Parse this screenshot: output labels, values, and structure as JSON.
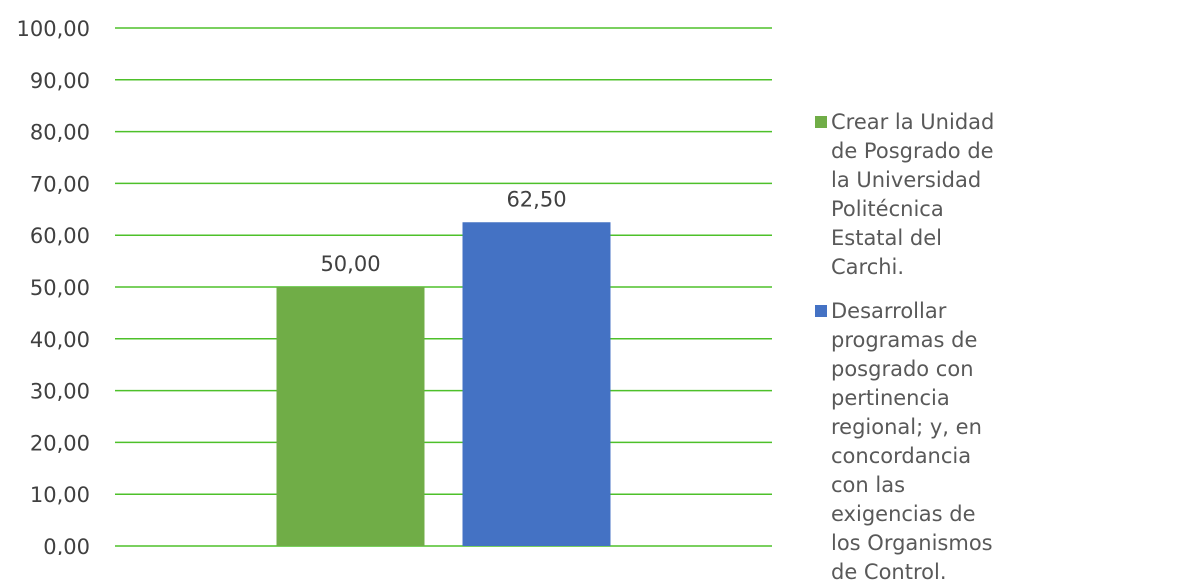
{
  "chart_data": {
    "type": "bar",
    "ylim": [
      0,
      100
    ],
    "ytick_step": 10,
    "grid": true,
    "legend_position": "right",
    "gridline_color": "#4ec02a",
    "series": [
      {
        "name": "Crear la Unidad de Posgrado de la Universidad Politécnica Estatal del Carchi.",
        "value": 50.0,
        "label": "50,00",
        "color": "#70ad47"
      },
      {
        "name": "Desarrollar programas de posgrado con pertinencia regional; y, en concordancia con las\nexigencias de los Organismos de Control.",
        "value": 62.5,
        "label": "62,50",
        "color": "#4472c4"
      }
    ],
    "yticks": [
      "0,00",
      "10,00",
      "20,00",
      "30,00",
      "40,00",
      "50,00",
      "60,00",
      "70,00",
      "80,00",
      "90,00",
      "100,00"
    ]
  }
}
